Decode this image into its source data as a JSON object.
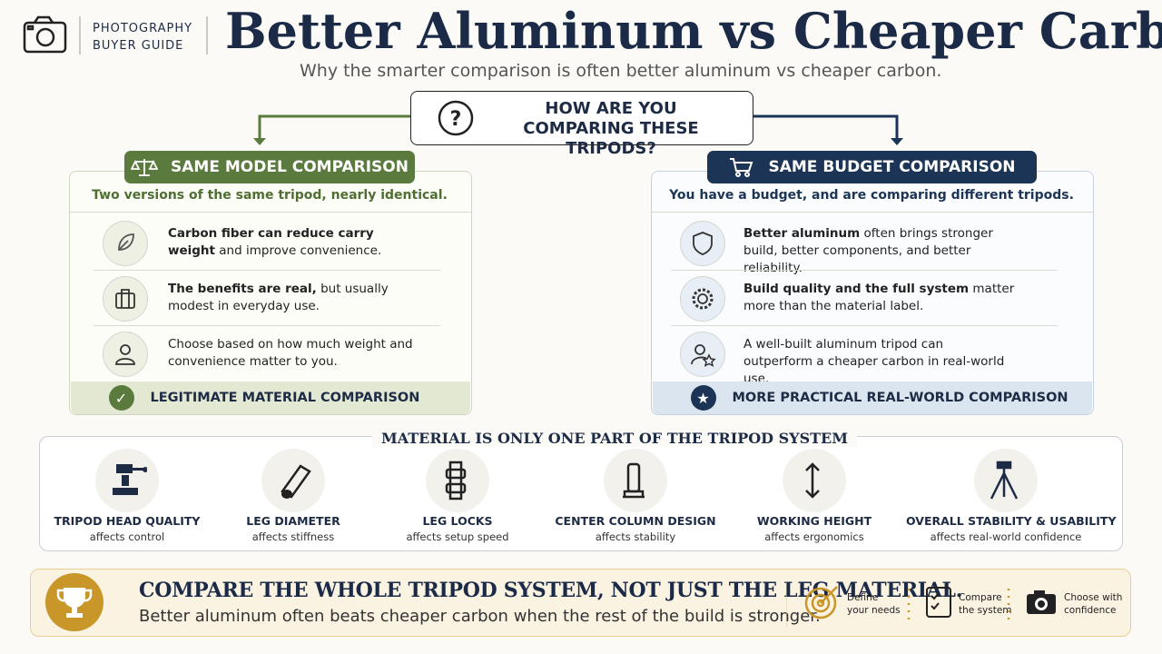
{
  "header": {
    "kicker": [
      "PHOTOGRAPHY",
      "BUYER GUIDE"
    ],
    "title": "Better Aluminum vs Cheaper Carbon",
    "subtitle": "Why the smarter comparison is often better aluminum vs cheaper carbon."
  },
  "question": [
    "HOW ARE YOU",
    "COMPARING THESE TRIPODS?"
  ],
  "left": {
    "heading": "SAME MODEL COMPARISON",
    "intro": "Two versions of the same tripod, nearly identical.",
    "items": [
      {
        "bold": "Carbon fiber can reduce carry weight",
        "text": "and improve convenience."
      },
      {
        "bold": "The benefits are real,",
        "text": "but usually modest in everyday use."
      },
      {
        "text": "Choose based on how much weight and convenience matter to you."
      }
    ],
    "footer": "LEGITIMATE MATERIAL COMPARISON"
  },
  "right": {
    "heading": "SAME BUDGET COMPARISON",
    "intro": "You have a budget, and are comparing different tripods.",
    "items": [
      {
        "bold": "Better aluminum",
        "text": "often brings stronger build, better components, and better reliability."
      },
      {
        "bold": "Build quality and the full system",
        "text": "matter more than the material label."
      },
      {
        "text": "A well-built aluminum tripod can outperform a cheaper carbon in real-world use."
      }
    ],
    "footer": "MORE PRACTICAL REAL-WORLD COMPARISON"
  },
  "system": {
    "title": "MATERIAL IS ONLY ONE PART OF THE TRIPOD SYSTEM",
    "items": [
      {
        "label": "TRIPOD HEAD QUALITY",
        "note": "affects control"
      },
      {
        "label": "LEG DIAMETER",
        "note": "affects stiffness"
      },
      {
        "label": "LEG LOCKS",
        "note": "affects setup speed"
      },
      {
        "label": "CENTER COLUMN DESIGN",
        "note": "affects stability"
      },
      {
        "label": "WORKING HEIGHT",
        "note": "affects ergonomics"
      },
      {
        "label": "OVERALL STABILITY & USABILITY",
        "note": "affects real-world confidence"
      }
    ]
  },
  "banner": {
    "headline": "COMPARE THE WHOLE TRIPOD SYSTEM, NOT JUST THE LEG MATERIAL.",
    "text": "Better aluminum often beats cheaper carbon when the rest of the build is stronger.",
    "steps": [
      [
        "Define",
        "your needs"
      ],
      [
        "Compare",
        "the system"
      ],
      [
        "Choose with",
        "confidence"
      ]
    ]
  }
}
